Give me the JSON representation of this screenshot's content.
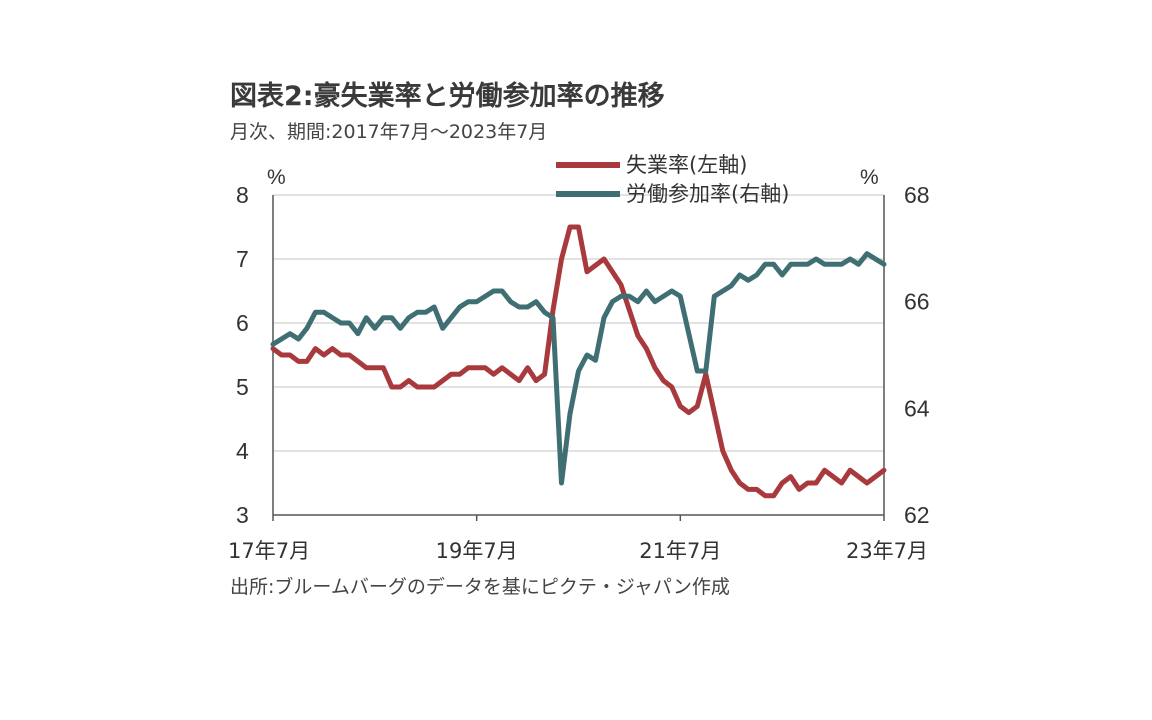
{
  "header": {
    "title": "図表2:豪失業率と労働参加率の推移",
    "subtitle": "月次、期間:2017年7月～2023年7月"
  },
  "footer": {
    "source": "出所:ブルームバーグのデータを基にピクテ・ジャパン作成"
  },
  "colors": {
    "unemployment": "#a83a3e",
    "participation": "#3f6f73",
    "grid": "#d9d9d9",
    "axis": "#555555"
  },
  "chart_data": {
    "type": "line",
    "x_start": "2017-07",
    "x_end": "2023-07",
    "x_tick_labels": [
      "17年7月",
      "19年7月",
      "21年7月",
      "23年7月"
    ],
    "left_axis": {
      "unit": "%",
      "ylim": [
        3,
        8
      ],
      "ticks": [
        "3",
        "4",
        "5",
        "6",
        "7",
        "8"
      ]
    },
    "right_axis": {
      "unit": "%",
      "ylim": [
        62,
        68
      ],
      "ticks": [
        "62",
        "64",
        "66",
        "68"
      ]
    },
    "legend_position": "top-right",
    "series": [
      {
        "name": "失業率(左軸)",
        "axis": "left",
        "values": [
          5.6,
          5.5,
          5.5,
          5.4,
          5.4,
          5.6,
          5.5,
          5.6,
          5.5,
          5.5,
          5.4,
          5.3,
          5.3,
          5.3,
          5.0,
          5.0,
          5.1,
          5.0,
          5.0,
          5.0,
          5.1,
          5.2,
          5.2,
          5.3,
          5.3,
          5.3,
          5.2,
          5.3,
          5.2,
          5.1,
          5.3,
          5.1,
          5.2,
          6.2,
          7.0,
          7.5,
          7.5,
          6.8,
          6.9,
          7.0,
          6.8,
          6.6,
          6.2,
          5.8,
          5.6,
          5.3,
          5.1,
          5.0,
          4.7,
          4.6,
          4.7,
          5.2,
          4.6,
          4.0,
          3.7,
          3.5,
          3.4,
          3.4,
          3.3,
          3.3,
          3.5,
          3.6,
          3.4,
          3.5,
          3.5,
          3.7,
          3.6,
          3.5,
          3.7,
          3.6,
          3.5,
          3.6,
          3.7
        ]
      },
      {
        "name": "労働参加率(右軸)",
        "axis": "right",
        "values": [
          65.2,
          65.3,
          65.4,
          65.3,
          65.5,
          65.8,
          65.8,
          65.7,
          65.6,
          65.6,
          65.4,
          65.7,
          65.5,
          65.7,
          65.7,
          65.5,
          65.7,
          65.8,
          65.8,
          65.9,
          65.5,
          65.7,
          65.9,
          66.0,
          66.0,
          66.1,
          66.2,
          66.2,
          66.0,
          65.9,
          65.9,
          66.0,
          65.8,
          65.7,
          62.6,
          63.9,
          64.7,
          65.0,
          64.9,
          65.7,
          66.0,
          66.1,
          66.1,
          66.0,
          66.2,
          66.0,
          66.1,
          66.2,
          66.1,
          65.4,
          64.7,
          64.7,
          66.1,
          66.2,
          66.3,
          66.5,
          66.4,
          66.5,
          66.7,
          66.7,
          66.5,
          66.7,
          66.7,
          66.7,
          66.8,
          66.7,
          66.7,
          66.7,
          66.8,
          66.7,
          66.9,
          66.8,
          66.7
        ]
      }
    ]
  }
}
